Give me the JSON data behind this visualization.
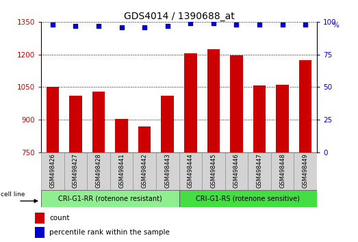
{
  "title": "GDS4014 / 1390688_at",
  "samples": [
    "GSM498426",
    "GSM498427",
    "GSM498428",
    "GSM498441",
    "GSM498442",
    "GSM498443",
    "GSM498444",
    "GSM498445",
    "GSM498446",
    "GSM498447",
    "GSM498448",
    "GSM498449"
  ],
  "bar_values": [
    1052,
    1010,
    1030,
    905,
    870,
    1010,
    1205,
    1225,
    1195,
    1058,
    1060,
    1175
  ],
  "percentile_values": [
    98,
    97,
    97,
    96,
    96,
    97,
    99,
    99,
    98,
    98,
    98,
    98
  ],
  "bar_color": "#cc0000",
  "dot_color": "#0000cc",
  "ylim_left": [
    750,
    1350
  ],
  "ylim_right": [
    0,
    100
  ],
  "yticks_left": [
    750,
    900,
    1050,
    1200,
    1350
  ],
  "yticks_right": [
    0,
    25,
    50,
    75,
    100
  ],
  "group1_label": "CRI-G1-RR (rotenone resistant)",
  "group2_label": "CRI-G1-RS (rotenone sensitive)",
  "group1_color": "#90ee90",
  "group2_color": "#44dd44",
  "group1_count": 6,
  "group2_count": 6,
  "cell_line_label": "cell line",
  "legend_count_label": "count",
  "legend_percentile_label": "percentile rank within the sample",
  "plot_bg_color": "#ffffff",
  "tick_label_color_left": "#cc0000",
  "tick_label_color_right": "#0000cc",
  "title_fontsize": 10,
  "tick_fontsize": 7.5,
  "bar_width": 0.55,
  "sample_label_fontsize": 6,
  "group_label_fontsize": 7,
  "legend_fontsize": 7.5
}
